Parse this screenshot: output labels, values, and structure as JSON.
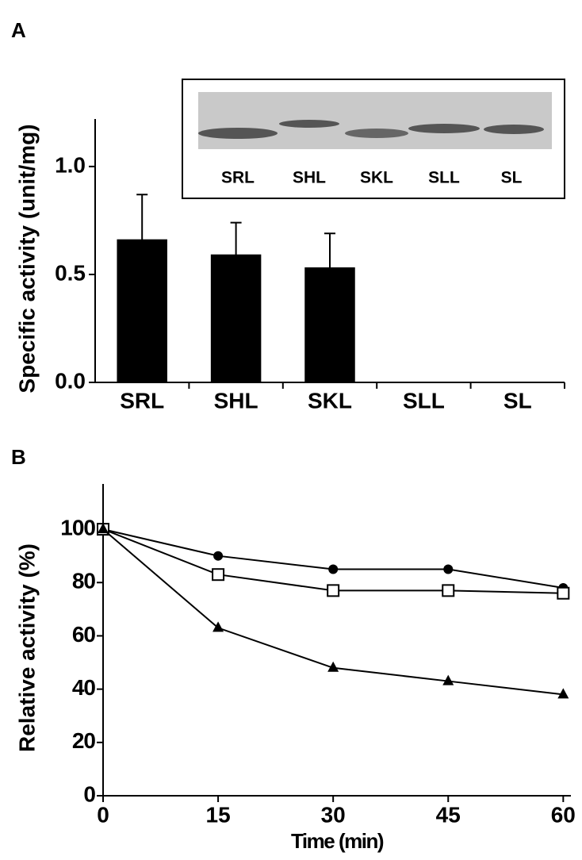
{
  "chart_data": [
    {
      "type": "bar",
      "panel_label": "A",
      "y_label": "Specific activity (unit/mg)",
      "categories": [
        "SRL",
        "SHL",
        "SKL",
        "SLL",
        "SL"
      ],
      "values": [
        0.66,
        0.59,
        0.53,
        0,
        0
      ],
      "errors": [
        0.21,
        0.15,
        0.16,
        null,
        null
      ],
      "color": "#000000",
      "ylim": [
        0,
        1.22
      ],
      "yticks": [
        {
          "value": 0,
          "label": "0.0"
        },
        {
          "value": 0.5,
          "label": "0.5"
        },
        {
          "value": 1,
          "label": "1.0"
        }
      ],
      "grid": false,
      "inset_lanes": [
        "SRL",
        "SHL",
        "SKL",
        "SLL",
        "SL"
      ]
    },
    {
      "type": "line",
      "panel_label": "B",
      "y_label": "Relative activity (%)",
      "x_label": "Time (min)",
      "x": [
        0,
        15,
        30,
        45,
        60
      ],
      "series": [
        {
          "marker": "circle",
          "color": "#000000",
          "values": [
            100,
            90,
            85,
            85,
            78
          ]
        },
        {
          "marker": "square",
          "color": "#000000",
          "values": [
            100,
            83,
            77,
            77,
            76
          ]
        },
        {
          "marker": "triangle",
          "color": "#000000",
          "values": [
            100,
            63,
            48,
            43,
            38
          ]
        }
      ],
      "xlim": [
        0,
        61
      ],
      "xticks": [
        0,
        15,
        30,
        45,
        60
      ],
      "ylim": [
        0,
        117
      ],
      "yticks": [
        0,
        20,
        40,
        60,
        80,
        100
      ],
      "grid": false
    }
  ]
}
